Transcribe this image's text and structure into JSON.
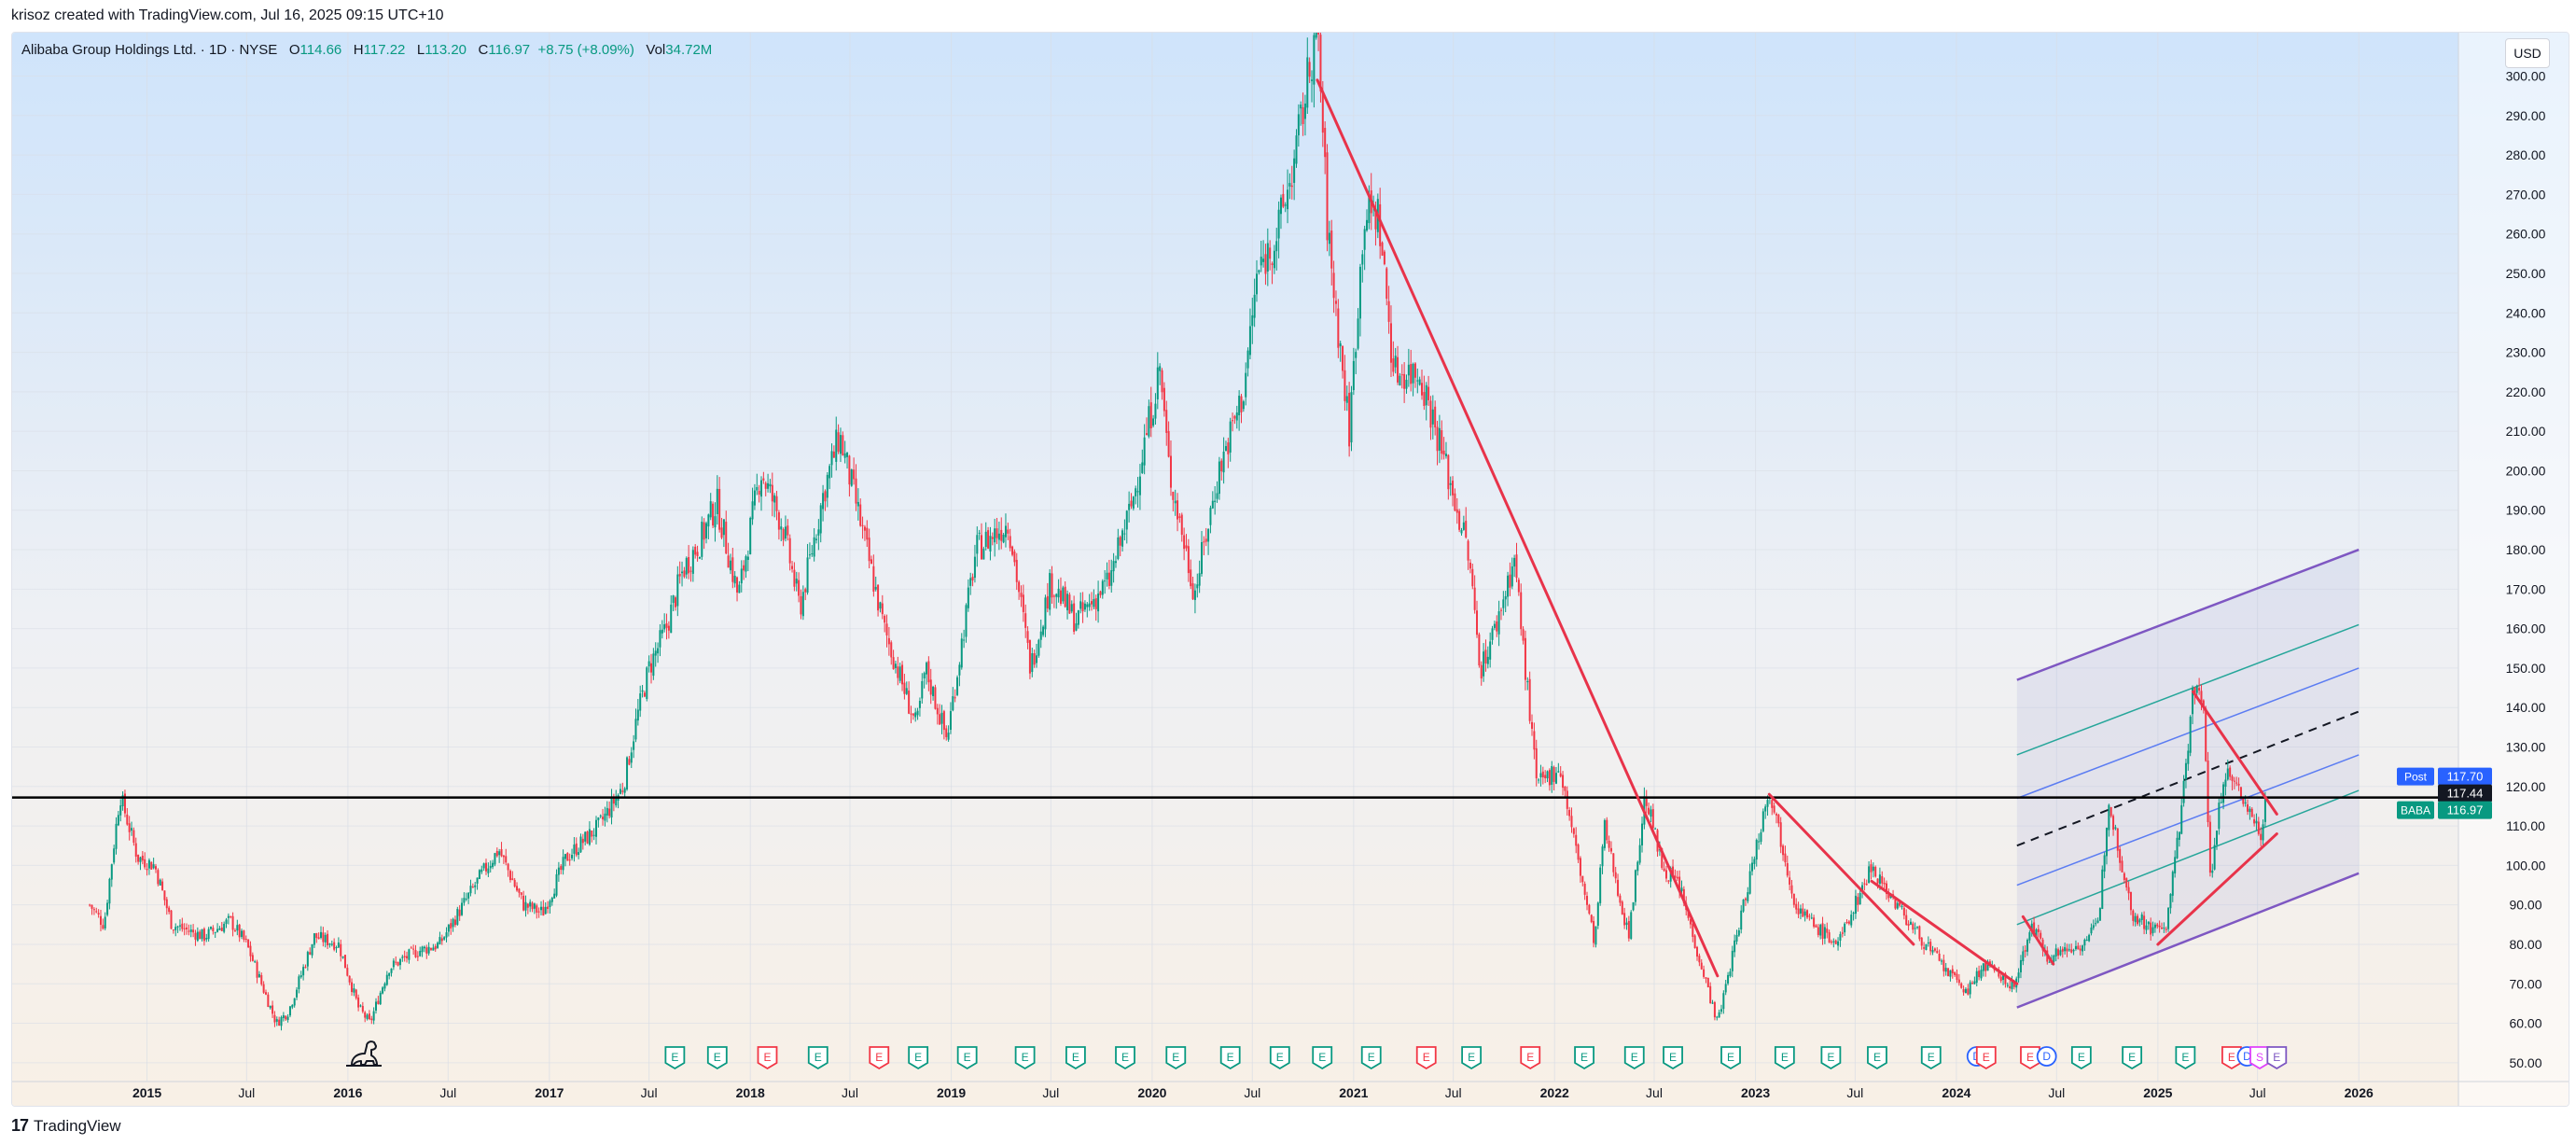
{
  "header": {
    "credit": "krisoz created with TradingView.com, Jul 16, 2025 09:15 UTC+10"
  },
  "legend": {
    "name": "Alibaba Group Holdings Ltd. · 1D · NYSE",
    "o_label": "O",
    "o": "114.66",
    "h_label": "H",
    "h": "117.22",
    "l_label": "L",
    "l": "113.20",
    "c_label": "C",
    "c": "116.97",
    "change": "+8.75 (+8.09%)",
    "vol_label": "Vol",
    "vol": "34.72M"
  },
  "currency": "USD",
  "footer": {
    "brand": "TradingView"
  },
  "colors": {
    "up": "#089981",
    "down": "#f23645",
    "trend": "#e8334a",
    "channel": "#7e57c2",
    "fib": "#5b7cf2",
    "fib_green": "#26a69a"
  },
  "chart_data": {
    "type": "candlestick",
    "symbol": "BABA",
    "yticks": [
      50,
      60,
      70,
      80,
      90,
      100,
      110,
      120,
      130,
      140,
      150,
      160,
      170,
      180,
      190,
      200,
      210,
      220,
      230,
      240,
      250,
      260,
      270,
      280,
      290,
      300
    ],
    "ytick_labels": [
      "50.00",
      "60.00",
      "70.00",
      "80.00",
      "90.00",
      "100.00",
      "110.00",
      "120.00",
      "130.00",
      "140.00",
      "150.00",
      "160.00",
      "170.00",
      "180.00",
      "190.00",
      "200.00",
      "210.00",
      "220.00",
      "230.00",
      "240.00",
      "250.00",
      "260.00",
      "270.00",
      "280.00",
      "290.00",
      "300.00"
    ],
    "ylim": [
      45,
      311
    ],
    "xlim": [
      "2014-05-01",
      "2026-07-01"
    ],
    "xticks": [
      {
        "date": "2015-01-01",
        "label": "2015",
        "major": true
      },
      {
        "date": "2015-07-01",
        "label": "Jul",
        "major": false
      },
      {
        "date": "2016-01-01",
        "label": "2016",
        "major": true
      },
      {
        "date": "2016-07-01",
        "label": "Jul",
        "major": false
      },
      {
        "date": "2017-01-01",
        "label": "2017",
        "major": true
      },
      {
        "date": "2017-07-01",
        "label": "Jul",
        "major": false
      },
      {
        "date": "2018-01-01",
        "label": "2018",
        "major": true
      },
      {
        "date": "2018-07-01",
        "label": "Jul",
        "major": false
      },
      {
        "date": "2019-01-01",
        "label": "2019",
        "major": true
      },
      {
        "date": "2019-07-01",
        "label": "Jul",
        "major": false
      },
      {
        "date": "2020-01-01",
        "label": "2020",
        "major": true
      },
      {
        "date": "2020-07-01",
        "label": "Jul",
        "major": false
      },
      {
        "date": "2021-01-01",
        "label": "2021",
        "major": true
      },
      {
        "date": "2021-07-01",
        "label": "Jul",
        "major": false
      },
      {
        "date": "2022-01-01",
        "label": "2022",
        "major": true
      },
      {
        "date": "2022-07-01",
        "label": "Jul",
        "major": false
      },
      {
        "date": "2023-01-01",
        "label": "2023",
        "major": true
      },
      {
        "date": "2023-07-01",
        "label": "Jul",
        "major": false
      },
      {
        "date": "2024-01-01",
        "label": "2024",
        "major": true
      },
      {
        "date": "2024-07-01",
        "label": "Jul",
        "major": false
      },
      {
        "date": "2025-01-01",
        "label": "2025",
        "major": true
      },
      {
        "date": "2025-07-01",
        "label": "Jul",
        "major": false
      },
      {
        "date": "2026-01-01",
        "label": "2026",
        "major": true
      }
    ],
    "price_path": [
      [
        "2014-09-19",
        90
      ],
      [
        "2014-10-15",
        85
      ],
      [
        "2014-11-13",
        118
      ],
      [
        "2014-12-15",
        102
      ],
      [
        "2015-01-15",
        100
      ],
      [
        "2015-02-15",
        85
      ],
      [
        "2015-04-15",
        82
      ],
      [
        "2015-06-01",
        86
      ],
      [
        "2015-07-01",
        80
      ],
      [
        "2015-08-24",
        60
      ],
      [
        "2015-09-15",
        63
      ],
      [
        "2015-11-01",
        82
      ],
      [
        "2015-12-15",
        80
      ],
      [
        "2016-01-20",
        64
      ],
      [
        "2016-02-10",
        60
      ],
      [
        "2016-03-15",
        74
      ],
      [
        "2016-05-01",
        78
      ],
      [
        "2016-06-15",
        80
      ],
      [
        "2016-09-01",
        98
      ],
      [
        "2016-10-01",
        104
      ],
      [
        "2016-11-15",
        90
      ],
      [
        "2016-12-20",
        88
      ],
      [
        "2017-02-01",
        102
      ],
      [
        "2017-04-01",
        110
      ],
      [
        "2017-05-15",
        120
      ],
      [
        "2017-06-10",
        138
      ],
      [
        "2017-07-01",
        150
      ],
      [
        "2017-08-01",
        160
      ],
      [
        "2017-09-01",
        175
      ],
      [
        "2017-10-01",
        182
      ],
      [
        "2017-11-01",
        192
      ],
      [
        "2017-12-10",
        168
      ],
      [
        "2018-01-20",
        200
      ],
      [
        "2018-03-01",
        186
      ],
      [
        "2018-04-01",
        165
      ],
      [
        "2018-05-15",
        195
      ],
      [
        "2018-06-12",
        209
      ],
      [
        "2018-07-15",
        190
      ],
      [
        "2018-09-01",
        160
      ],
      [
        "2018-10-30",
        135
      ],
      [
        "2018-11-15",
        150
      ],
      [
        "2018-12-24",
        132
      ],
      [
        "2019-02-15",
        180
      ],
      [
        "2019-04-15",
        187
      ],
      [
        "2019-05-25",
        150
      ],
      [
        "2019-07-01",
        172
      ],
      [
        "2019-08-15",
        162
      ],
      [
        "2019-10-15",
        172
      ],
      [
        "2019-11-26",
        192
      ],
      [
        "2020-01-15",
        226
      ],
      [
        "2020-02-01",
        200
      ],
      [
        "2020-03-18",
        169
      ],
      [
        "2020-05-01",
        200
      ],
      [
        "2020-06-15",
        220
      ],
      [
        "2020-07-10",
        250
      ],
      [
        "2020-08-15",
        260
      ],
      [
        "2020-09-15",
        278
      ],
      [
        "2020-10-27",
        314
      ],
      [
        "2020-11-15",
        260
      ],
      [
        "2020-12-24",
        210
      ],
      [
        "2021-01-20",
        265
      ],
      [
        "2021-02-15",
        265
      ],
      [
        "2021-03-15",
        225
      ],
      [
        "2021-05-01",
        225
      ],
      [
        "2021-06-01",
        210
      ],
      [
        "2021-07-27",
        180
      ],
      [
        "2021-08-20",
        150
      ],
      [
        "2021-09-15",
        160
      ],
      [
        "2021-10-20",
        178
      ],
      [
        "2021-11-30",
        120
      ],
      [
        "2022-01-10",
        125
      ],
      [
        "2022-03-15",
        80
      ],
      [
        "2022-04-01",
        110
      ],
      [
        "2022-05-15",
        82
      ],
      [
        "2022-06-15",
        118
      ],
      [
        "2022-07-15",
        100
      ],
      [
        "2022-08-15",
        95
      ],
      [
        "2022-10-24",
        60
      ],
      [
        "2022-11-15",
        74
      ],
      [
        "2023-01-26",
        120
      ],
      [
        "2023-03-15",
        90
      ],
      [
        "2023-04-15",
        85
      ],
      [
        "2023-05-31",
        80
      ],
      [
        "2023-07-31",
        100
      ],
      [
        "2023-08-31",
        93
      ],
      [
        "2023-10-15",
        84
      ],
      [
        "2023-12-15",
        73
      ],
      [
        "2024-01-22",
        68
      ],
      [
        "2024-02-20",
        75
      ],
      [
        "2024-04-15",
        69
      ],
      [
        "2024-05-15",
        85
      ],
      [
        "2024-06-15",
        77
      ],
      [
        "2024-08-15",
        80
      ],
      [
        "2024-09-15",
        85
      ],
      [
        "2024-10-03",
        117
      ],
      [
        "2024-11-15",
        88
      ],
      [
        "2024-12-20",
        84
      ],
      [
        "2025-01-15",
        84
      ],
      [
        "2025-02-10",
        110
      ],
      [
        "2025-03-06",
        145
      ],
      [
        "2025-03-25",
        140
      ],
      [
        "2025-04-07",
        96
      ],
      [
        "2025-05-01",
        124
      ],
      [
        "2025-06-01",
        118
      ],
      [
        "2025-07-07",
        108
      ],
      [
        "2025-07-15",
        117
      ]
    ],
    "horizontal_level": 117.2,
    "trendlines": [
      {
        "from": [
          "2020-10-27",
          299
        ],
        "to": [
          "2022-10-24",
          72
        ]
      },
      {
        "from": [
          "2023-01-26",
          118
        ],
        "to": [
          "2023-10-15",
          80
        ]
      },
      {
        "from": [
          "2023-07-31",
          96
        ],
        "to": [
          "2024-04-20",
          70
        ]
      },
      {
        "from": [
          "2024-05-01",
          87
        ],
        "to": [
          "2024-06-25",
          75
        ]
      },
      {
        "from": [
          "2025-03-06",
          144
        ],
        "to": [
          "2025-08-05",
          113
        ]
      },
      {
        "from": [
          "2025-01-01",
          80
        ],
        "to": [
          "2025-08-05",
          108
        ]
      }
    ],
    "channel": {
      "start": "2024-04-20",
      "end": "2026-01-01",
      "lower": [
        64,
        98
      ],
      "upper": [
        147,
        180
      ],
      "fib_levels": [
        {
          "start": 85,
          "end": 119,
          "color": "green"
        },
        {
          "start": 95,
          "end": 128,
          "color": "blue"
        },
        {
          "start": 105,
          "end": 139,
          "color": "dashed"
        },
        {
          "start": 117,
          "end": 150,
          "color": "blue"
        },
        {
          "start": 128,
          "end": 161,
          "color": "green"
        }
      ]
    },
    "price_labels": [
      {
        "label": "Post",
        "value": "117.70",
        "price": 117.7,
        "bg": "#2962ff"
      },
      {
        "label": "",
        "value": "117.44",
        "price": 117.44,
        "bg": "#131722"
      },
      {
        "label": "BABA",
        "value": "116.97",
        "price": 116.97,
        "bg": "#089981"
      }
    ],
    "events": [
      {
        "date": "2017-08-17",
        "type": "E",
        "beat": true
      },
      {
        "date": "2017-11-02",
        "type": "E",
        "beat": true
      },
      {
        "date": "2018-02-01",
        "type": "E",
        "beat": false
      },
      {
        "date": "2018-05-04",
        "type": "E",
        "beat": true
      },
      {
        "date": "2018-08-23",
        "type": "E",
        "beat": false
      },
      {
        "date": "2018-11-02",
        "type": "E",
        "beat": true
      },
      {
        "date": "2019-01-30",
        "type": "E",
        "beat": true
      },
      {
        "date": "2019-05-15",
        "type": "E",
        "beat": true
      },
      {
        "date": "2019-08-15",
        "type": "E",
        "beat": true
      },
      {
        "date": "2019-11-13",
        "type": "E",
        "beat": true
      },
      {
        "date": "2020-02-13",
        "type": "E",
        "beat": true
      },
      {
        "date": "2020-05-22",
        "type": "E",
        "beat": true
      },
      {
        "date": "2020-08-20",
        "type": "E",
        "beat": true
      },
      {
        "date": "2020-11-05",
        "type": "E",
        "beat": true
      },
      {
        "date": "2021-02-02",
        "type": "E",
        "beat": true
      },
      {
        "date": "2021-05-13",
        "type": "E",
        "beat": false
      },
      {
        "date": "2021-08-03",
        "type": "E",
        "beat": true
      },
      {
        "date": "2021-11-18",
        "type": "E",
        "beat": false
      },
      {
        "date": "2022-02-24",
        "type": "E",
        "beat": true
      },
      {
        "date": "2022-05-26",
        "type": "E",
        "beat": true
      },
      {
        "date": "2022-08-04",
        "type": "E",
        "beat": true
      },
      {
        "date": "2022-11-17",
        "type": "E",
        "beat": true
      },
      {
        "date": "2023-02-23",
        "type": "E",
        "beat": true
      },
      {
        "date": "2023-05-18",
        "type": "E",
        "beat": true
      },
      {
        "date": "2023-08-10",
        "type": "E",
        "beat": true
      },
      {
        "date": "2023-11-16",
        "type": "E",
        "beat": true
      },
      {
        "date": "2024-02-07",
        "type": "D",
        "beat": null
      },
      {
        "date": "2024-02-24",
        "type": "E",
        "beat": false
      },
      {
        "date": "2024-05-14",
        "type": "E",
        "beat": false
      },
      {
        "date": "2024-06-13",
        "type": "D",
        "beat": null
      },
      {
        "date": "2024-08-15",
        "type": "E",
        "beat": true
      },
      {
        "date": "2024-11-15",
        "type": "E",
        "beat": true
      },
      {
        "date": "2025-02-20",
        "type": "E",
        "beat": true
      },
      {
        "date": "2025-05-15",
        "type": "E",
        "beat": false
      },
      {
        "date": "2025-06-12",
        "type": "D",
        "beat": null
      },
      {
        "date": "2025-07-05",
        "type": "S",
        "beat": null
      },
      {
        "date": "2025-08-05",
        "type": "E",
        "beat": null
      }
    ]
  }
}
